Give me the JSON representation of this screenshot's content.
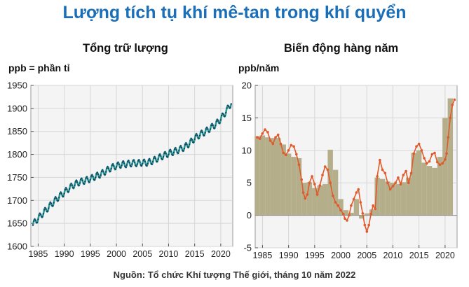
{
  "title": "Lượng tích tụ khí mê-tan trong khí quyển",
  "source": "Nguồn: Tổ chức Khí tượng Thế giới, tháng 10 năm 2022",
  "colors": {
    "title": "#1a6fb8",
    "panel_bg": "#f4f4f4",
    "left_line": "#2a9d95",
    "left_marker": "#1c3f63",
    "right_line": "#e05a2b",
    "right_bars": "#b5ae8a"
  },
  "chart_data": [
    {
      "type": "line",
      "title": "Tổng trữ lượng",
      "unit_label": "ppb = phần tỉ",
      "xlim": [
        1983.6,
        2022.3
      ],
      "ylim": [
        1600,
        1950
      ],
      "xticks": [
        1985,
        1990,
        1995,
        2000,
        2005,
        2010,
        2015,
        2020
      ],
      "yticks": [
        1600,
        1650,
        1700,
        1750,
        1800,
        1850,
        1900,
        1950
      ],
      "grid": true,
      "legend": "none",
      "series": [
        {
          "style": "monthly line with markers (seasonal cycle)",
          "x": [
            1984.0,
            1985,
            1986,
            1987,
            1988,
            1989,
            1990,
            1991,
            1992,
            1993,
            1994,
            1995,
            1996,
            1997,
            1998,
            1999,
            2000,
            2001,
            2002,
            2003,
            2004,
            2005,
            2006,
            2007,
            2008,
            2009,
            2010,
            2011,
            2012,
            2013,
            2014,
            2015,
            2016,
            2017,
            2018,
            2019,
            2020,
            2021,
            2022
          ],
          "y": [
            1648,
            1661,
            1673,
            1685,
            1697,
            1708,
            1717,
            1727,
            1735,
            1740,
            1743,
            1747,
            1752,
            1757,
            1764,
            1771,
            1775,
            1778,
            1779,
            1781,
            1781,
            1782,
            1782,
            1786,
            1792,
            1797,
            1802,
            1806,
            1810,
            1815,
            1824,
            1835,
            1843,
            1849,
            1857,
            1865,
            1877,
            1893,
            1912
          ],
          "seasonal_amplitude_ppb": 7
        }
      ]
    },
    {
      "type": "bar",
      "title": "Biến động hàng năm",
      "unit_label": "ppb/năm",
      "xlim": [
        1983.6,
        2022.3
      ],
      "ylim": [
        -5,
        20
      ],
      "xticks": [
        1985,
        1990,
        1995,
        2000,
        2005,
        2010,
        2015,
        2020
      ],
      "yticks": [
        -5,
        0,
        5,
        10,
        15,
        20
      ],
      "grid": true,
      "legend": "none",
      "bars": {
        "categories": [
          1984,
          1985,
          1986,
          1987,
          1988,
          1989,
          1990,
          1991,
          1992,
          1993,
          1994,
          1995,
          1996,
          1997,
          1998,
          1999,
          2000,
          2001,
          2002,
          2003,
          2004,
          2005,
          2006,
          2007,
          2008,
          2009,
          2010,
          2011,
          2012,
          2013,
          2014,
          2015,
          2016,
          2017,
          2018,
          2019,
          2020,
          2021
        ],
        "values": [
          12.2,
          12.3,
          12.0,
          11.9,
          11.9,
          10.9,
          9.5,
          9.0,
          8.8,
          5.0,
          5.1,
          4.2,
          4.6,
          4.8,
          10.1,
          7.0,
          2.5,
          0.8,
          0.4,
          2.5,
          -0.5,
          0.3,
          0.9,
          5.8,
          5.6,
          5.2,
          5.0,
          4.8,
          5.1,
          5.8,
          9.6,
          10.0,
          8.1,
          7.6,
          7.3,
          9.0,
          15.0,
          18.0
        ]
      },
      "line": {
        "x": [
          1984.0,
          1984.5,
          1985.0,
          1985.5,
          1986.0,
          1986.5,
          1987.0,
          1987.5,
          1988.0,
          1988.5,
          1989.0,
          1989.5,
          1990.0,
          1990.5,
          1991.0,
          1991.5,
          1992.0,
          1992.5,
          1992.8,
          1993.2,
          1993.6,
          1994.0,
          1994.5,
          1995.0,
          1995.5,
          1996.0,
          1996.5,
          1997.0,
          1997.5,
          1998.0,
          1998.5,
          1999.0,
          1999.5,
          2000.0,
          2000.5,
          2000.8,
          2001.2,
          2001.6,
          2002.0,
          2002.5,
          2003.0,
          2003.4,
          2003.8,
          2004.2,
          2004.6,
          2005.0,
          2005.4,
          2005.8,
          2006.2,
          2006.6,
          2007.0,
          2007.5,
          2008.0,
          2008.5,
          2009.0,
          2009.5,
          2010.0,
          2010.5,
          2011.0,
          2011.5,
          2012.0,
          2012.5,
          2013.0,
          2013.5,
          2014.0,
          2014.5,
          2015.0,
          2015.5,
          2016.0,
          2016.5,
          2017.0,
          2017.5,
          2018.0,
          2018.5,
          2019.0,
          2019.5,
          2020.0,
          2020.3,
          2020.6,
          2021.0,
          2021.4,
          2021.8
        ],
        "y": [
          12.0,
          11.8,
          12.6,
          13.2,
          12.8,
          11.5,
          11.0,
          12.0,
          12.4,
          11.0,
          9.6,
          9.3,
          10.0,
          10.8,
          10.6,
          9.4,
          7.8,
          5.5,
          3.5,
          2.6,
          3.2,
          5.0,
          6.0,
          4.8,
          3.2,
          4.6,
          6.2,
          7.5,
          7.0,
          5.0,
          3.0,
          2.0,
          1.5,
          0.8,
          0.2,
          -0.5,
          -0.8,
          0.0,
          1.5,
          2.5,
          3.5,
          4.0,
          2.0,
          0.3,
          -1.5,
          -2.5,
          -1.5,
          0.2,
          1.5,
          1.0,
          6.0,
          8.5,
          7.0,
          6.5,
          5.0,
          4.0,
          4.5,
          5.0,
          5.8,
          4.8,
          6.2,
          6.8,
          5.0,
          6.5,
          9.5,
          10.6,
          11.0,
          10.0,
          8.8,
          8.0,
          8.3,
          9.4,
          9.6,
          8.2,
          7.8,
          8.0,
          8.6,
          9.5,
          12.0,
          15.0,
          17.0,
          17.8
        ]
      }
    }
  ]
}
